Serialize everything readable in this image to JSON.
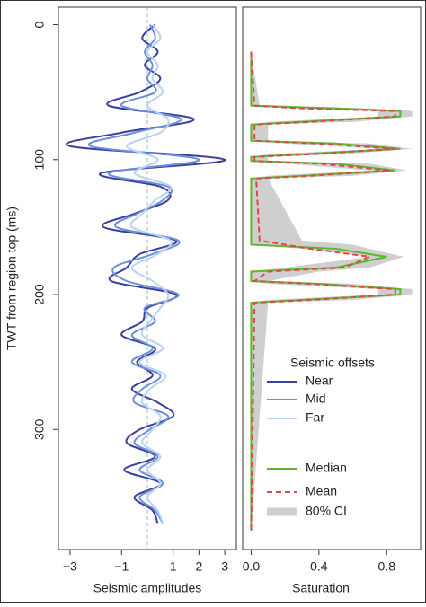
{
  "chart_data": [
    {
      "type": "line",
      "y_label": "TWT from region top (ms)",
      "x_label": "Seismic amplitudes",
      "legend_title": "Seismic offsets",
      "zero_line": true,
      "y": [
        0,
        10,
        20,
        30,
        40,
        50,
        60,
        70,
        80,
        90,
        100,
        110,
        120,
        130,
        140,
        150,
        160,
        170,
        180,
        190,
        200,
        210,
        220,
        230,
        240,
        250,
        260,
        270,
        280,
        290,
        300,
        310,
        320,
        330,
        340,
        350,
        360,
        370
      ],
      "series": [
        {
          "name": "Near",
          "color": "#3b3f9e",
          "values": [
            0.3,
            -0.2,
            0.4,
            -0.1,
            0.5,
            -0.3,
            -1.5,
            1.8,
            -1.0,
            -3.0,
            3.0,
            -1.8,
            0.5,
            0.8,
            -0.5,
            -1.7,
            1.1,
            -0.3,
            -0.8,
            -1.4,
            1.1,
            0.0,
            -0.2,
            -1.0,
            0.3,
            -0.4,
            0.2,
            -0.6,
            0.4,
            1.0,
            -0.3,
            -0.8,
            0.3,
            -0.9,
            0.5,
            -0.5,
            0.2,
            0.4
          ]
        },
        {
          "name": "Mid",
          "color": "#6d8fd8",
          "values": [
            0.1,
            0.3,
            -0.1,
            0.2,
            0.0,
            0.3,
            -1.0,
            1.3,
            -0.5,
            -2.2,
            2.0,
            -1.5,
            0.8,
            0.6,
            -0.4,
            -1.2,
            1.2,
            0.2,
            -1.3,
            -0.8,
            1.2,
            -0.1,
            0.3,
            -0.6,
            0.2,
            -0.6,
            0.5,
            -0.2,
            -0.5,
            0.8,
            0.1,
            -0.5,
            0.4,
            -0.3,
            0.6,
            -0.3,
            0.3,
            0.6
          ]
        },
        {
          "name": "Far",
          "color": "#b9d3f0",
          "values": [
            0.2,
            0.5,
            0.0,
            0.4,
            0.2,
            0.6,
            0.0,
            0.8,
            0.5,
            -0.8,
            0.4,
            -0.5,
            0.9,
            0.3,
            -0.2,
            -0.6,
            0.9,
            0.4,
            -0.6,
            0.2,
            0.8,
            0.5,
            0.1,
            -0.2,
            0.6,
            -0.3,
            0.7,
            0.1,
            -0.2,
            0.5,
            0.2,
            -0.2,
            0.5,
            0.0,
            0.5,
            0.0,
            0.4,
            0.6
          ]
        }
      ],
      "xlim": [
        -3.45,
        3.45
      ],
      "xticks": [
        {
          "value": -3,
          "label": "−3"
        },
        {
          "value": -1,
          "label": "−1"
        },
        1,
        2,
        3
      ],
      "ylim": [
        -13,
        389
      ],
      "y_inverted": true,
      "yticks": [
        0,
        100,
        200,
        300
      ]
    },
    {
      "type": "line",
      "x_label": "Saturation",
      "y": [
        20,
        60,
        62,
        64,
        68,
        72,
        74,
        86,
        88,
        92,
        96,
        98,
        101,
        103,
        108,
        112,
        114,
        160,
        163,
        166,
        172,
        180,
        183,
        190,
        192,
        196,
        200,
        204,
        206,
        375
      ],
      "band": {
        "name": "80% CI",
        "color": "#cfcfcf",
        "lower": [
          0,
          0,
          0.2,
          0.75,
          0.75,
          0.1,
          0,
          0,
          0.2,
          0.75,
          0.1,
          0,
          0,
          0.2,
          0.7,
          0.1,
          0,
          0,
          0,
          0.3,
          0.7,
          0.2,
          0,
          0,
          0.1,
          0.75,
          0.75,
          0.1,
          0,
          0
        ],
        "upper": [
          0,
          0.05,
          0.7,
          0.95,
          0.95,
          0.6,
          0.1,
          0.1,
          0.7,
          0.95,
          0.55,
          0.1,
          0.1,
          0.7,
          0.92,
          0.6,
          0.1,
          0.3,
          0.6,
          0.7,
          0.9,
          0.7,
          0.4,
          0.1,
          0.6,
          0.95,
          0.95,
          0.6,
          0.1,
          0
        ]
      },
      "series": [
        {
          "name": "Median",
          "color": "#5cb82a",
          "dashed": false,
          "values": [
            0,
            0,
            0.5,
            0.88,
            0.88,
            0.3,
            0,
            0,
            0.5,
            0.88,
            0.3,
            0,
            0,
            0.5,
            0.85,
            0.3,
            0,
            0,
            0,
            0.5,
            0.8,
            0.5,
            0,
            0,
            0.4,
            0.88,
            0.88,
            0.3,
            0,
            0
          ]
        },
        {
          "name": "Mean",
          "color": "#e0454f",
          "dashed": true,
          "values": [
            0,
            0.02,
            0.3,
            0.85,
            0.85,
            0.35,
            0.02,
            0.02,
            0.4,
            0.85,
            0.35,
            0.02,
            0.02,
            0.4,
            0.82,
            0.35,
            0.03,
            0.05,
            0.2,
            0.35,
            0.7,
            0.55,
            0.1,
            0.02,
            0.35,
            0.85,
            0.85,
            0.35,
            0.02,
            0
          ]
        }
      ],
      "xlim": [
        -0.05,
        1.0
      ],
      "xticks": [
        {
          "value": 0,
          "label": "0.0"
        },
        0.4,
        0.8
      ],
      "ylim": [
        -13,
        389
      ],
      "y_inverted": true
    }
  ]
}
